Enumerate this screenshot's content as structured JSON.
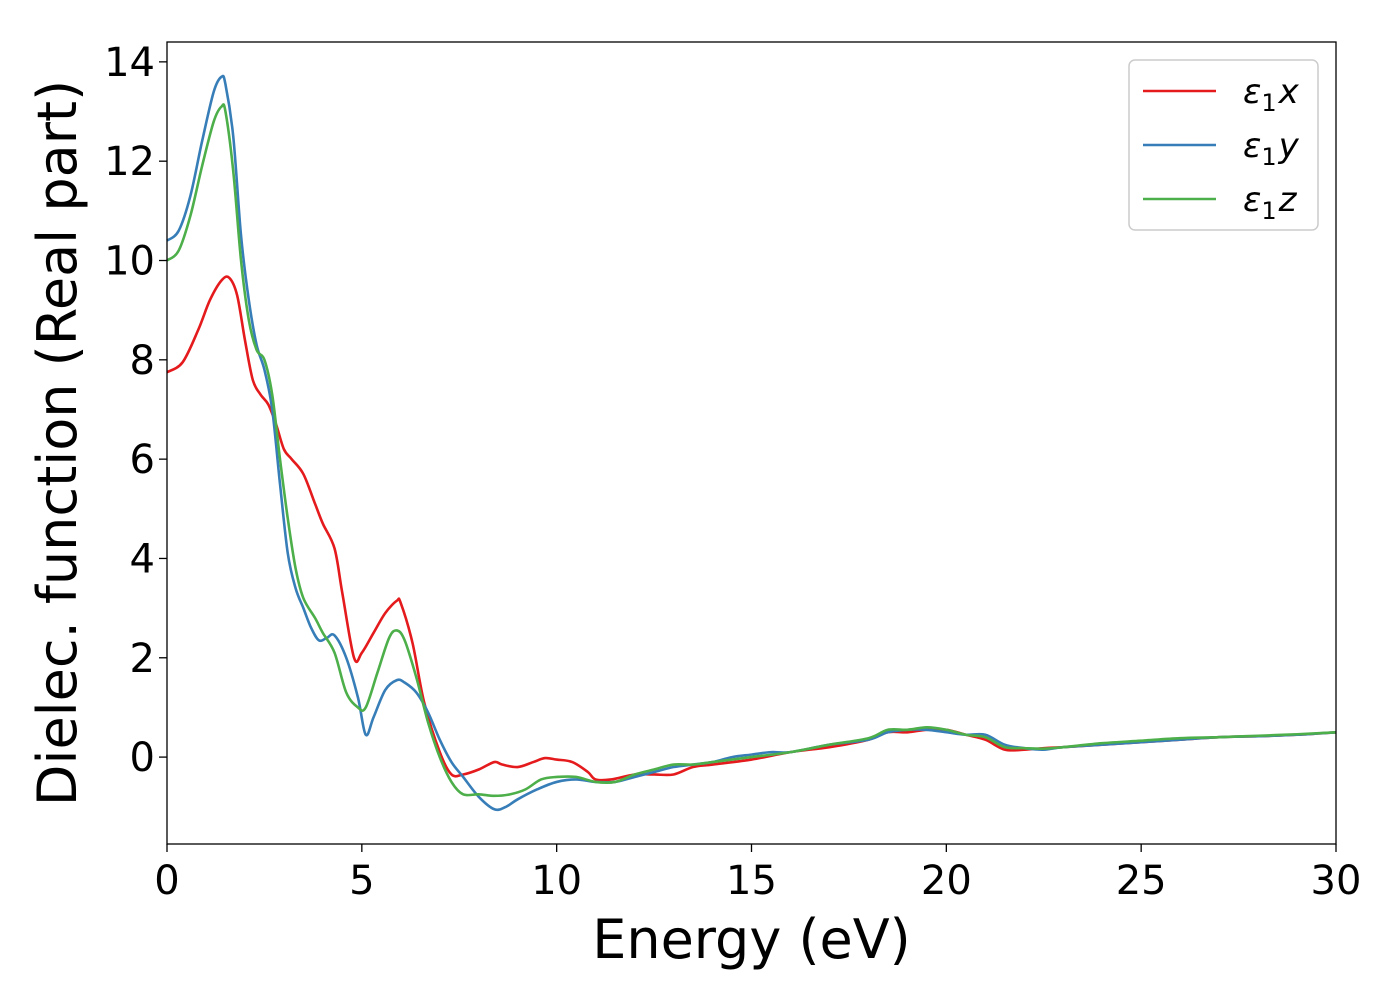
{
  "chart_data": {
    "type": "line",
    "title": "",
    "xlabel": "Energy (eV)",
    "ylabel": "Dielec. function (Real part)",
    "xlim": [
      0,
      30
    ],
    "ylim": [
      -1.75,
      14.4
    ],
    "xticks": [
      0,
      5,
      10,
      15,
      20,
      25,
      30
    ],
    "yticks": [
      0,
      2,
      4,
      6,
      8,
      10,
      12,
      14
    ],
    "grid": false,
    "legend_position": "top-right",
    "series": [
      {
        "name": "ε1x",
        "legend_main": "ε",
        "legend_sub": "1",
        "legend_suffix": "x",
        "color": "#e41a1c",
        "x": [
          0,
          0.4,
          0.8,
          1.1,
          1.4,
          1.6,
          1.8,
          2.0,
          2.2,
          2.4,
          2.6,
          2.8,
          3.0,
          3.2,
          3.5,
          3.8,
          4.0,
          4.3,
          4.5,
          4.8,
          5.0,
          5.3,
          5.6,
          5.9,
          6.0,
          6.3,
          6.6,
          7.0,
          7.3,
          7.6,
          8.0,
          8.4,
          8.6,
          9.0,
          9.4,
          9.7,
          10.0,
          10.4,
          10.8,
          11.0,
          11.4,
          12.0,
          12.5,
          13.0,
          13.5,
          14.0,
          15.0,
          16.0,
          17.0,
          18.0,
          18.5,
          19.0,
          19.5,
          20.0,
          20.5,
          21.0,
          21.5,
          22.0,
          22.5,
          23.0,
          24.0,
          25.0,
          26.0,
          27.0,
          28.0,
          29.0,
          30.0
        ],
        "y": [
          7.75,
          7.95,
          8.6,
          9.2,
          9.6,
          9.65,
          9.3,
          8.4,
          7.6,
          7.3,
          7.1,
          6.7,
          6.2,
          6.0,
          5.7,
          5.1,
          4.7,
          4.2,
          3.3,
          2.0,
          2.1,
          2.5,
          2.9,
          3.15,
          3.1,
          2.3,
          1.1,
          0.1,
          -0.35,
          -0.35,
          -0.25,
          -0.1,
          -0.15,
          -0.2,
          -0.1,
          -0.02,
          -0.05,
          -0.1,
          -0.3,
          -0.45,
          -0.45,
          -0.35,
          -0.35,
          -0.35,
          -0.2,
          -0.15,
          -0.05,
          0.1,
          0.2,
          0.35,
          0.5,
          0.5,
          0.55,
          0.55,
          0.45,
          0.35,
          0.15,
          0.15,
          0.18,
          0.2,
          0.25,
          0.3,
          0.35,
          0.4,
          0.42,
          0.45,
          0.5
        ]
      },
      {
        "name": "ε1y",
        "legend_main": "ε",
        "legend_sub": "1",
        "legend_suffix": "y",
        "color": "#377eb8",
        "x": [
          0,
          0.3,
          0.6,
          0.9,
          1.2,
          1.4,
          1.5,
          1.7,
          1.9,
          2.1,
          2.3,
          2.5,
          2.7,
          2.9,
          3.1,
          3.3,
          3.5,
          3.7,
          3.9,
          4.1,
          4.3,
          4.6,
          4.9,
          5.1,
          5.3,
          5.6,
          5.9,
          6.1,
          6.4,
          6.7,
          7.0,
          7.3,
          7.6,
          8.0,
          8.4,
          8.7,
          9.0,
          9.5,
          10.0,
          10.5,
          11.0,
          11.5,
          12.0,
          12.5,
          13.0,
          13.5,
          14.0,
          14.5,
          15.0,
          15.5,
          16.0,
          17.0,
          18.0,
          18.5,
          19.0,
          19.5,
          20.0,
          20.5,
          21.0,
          21.5,
          22.0,
          22.5,
          23.0,
          24.0,
          25.0,
          26.0,
          27.0,
          28.0,
          29.0,
          30.0
        ],
        "y": [
          10.4,
          10.6,
          11.3,
          12.4,
          13.4,
          13.7,
          13.55,
          12.5,
          10.5,
          9.2,
          8.3,
          7.8,
          7.0,
          5.5,
          4.1,
          3.4,
          3.0,
          2.6,
          2.35,
          2.4,
          2.45,
          2.0,
          1.2,
          0.45,
          0.8,
          1.35,
          1.55,
          1.5,
          1.3,
          0.9,
          0.35,
          -0.1,
          -0.4,
          -0.8,
          -1.05,
          -1.0,
          -0.85,
          -0.65,
          -0.5,
          -0.45,
          -0.5,
          -0.5,
          -0.4,
          -0.3,
          -0.2,
          -0.15,
          -0.1,
          0.0,
          0.05,
          0.1,
          0.1,
          0.25,
          0.35,
          0.5,
          0.55,
          0.55,
          0.5,
          0.45,
          0.45,
          0.25,
          0.18,
          0.15,
          0.2,
          0.25,
          0.3,
          0.35,
          0.4,
          0.42,
          0.45,
          0.5
        ]
      },
      {
        "name": "ε1z",
        "legend_main": "ε",
        "legend_sub": "1",
        "legend_suffix": "z",
        "color": "#4daf4a",
        "x": [
          0,
          0.3,
          0.6,
          0.9,
          1.2,
          1.4,
          1.5,
          1.7,
          1.9,
          2.1,
          2.3,
          2.5,
          2.7,
          2.9,
          3.1,
          3.3,
          3.5,
          3.8,
          4.0,
          4.3,
          4.6,
          4.9,
          5.1,
          5.4,
          5.7,
          5.9,
          6.1,
          6.4,
          6.7,
          7.0,
          7.3,
          7.6,
          8.0,
          8.4,
          8.8,
          9.2,
          9.6,
          10.0,
          10.5,
          11.0,
          11.5,
          12.0,
          12.5,
          13.0,
          13.5,
          14.0,
          14.5,
          15.0,
          16.0,
          17.0,
          18.0,
          18.5,
          19.0,
          19.5,
          20.0,
          20.5,
          21.0,
          21.5,
          22.0,
          22.5,
          23.0,
          24.0,
          25.0,
          26.0,
          27.0,
          28.0,
          29.0,
          30.0
        ],
        "y": [
          10.0,
          10.2,
          10.9,
          11.9,
          12.8,
          13.1,
          13.0,
          11.8,
          10.0,
          8.8,
          8.2,
          8.0,
          7.3,
          6.0,
          4.8,
          3.8,
          3.2,
          2.8,
          2.5,
          2.1,
          1.3,
          1.0,
          1.0,
          1.7,
          2.4,
          2.55,
          2.35,
          1.6,
          0.7,
          0.0,
          -0.5,
          -0.75,
          -0.75,
          -0.78,
          -0.75,
          -0.65,
          -0.45,
          -0.4,
          -0.4,
          -0.5,
          -0.5,
          -0.35,
          -0.25,
          -0.15,
          -0.15,
          -0.1,
          -0.05,
          0.0,
          0.1,
          0.25,
          0.38,
          0.55,
          0.55,
          0.6,
          0.55,
          0.45,
          0.4,
          0.2,
          0.18,
          0.17,
          0.2,
          0.28,
          0.33,
          0.38,
          0.4,
          0.43,
          0.46,
          0.5
        ]
      }
    ]
  }
}
